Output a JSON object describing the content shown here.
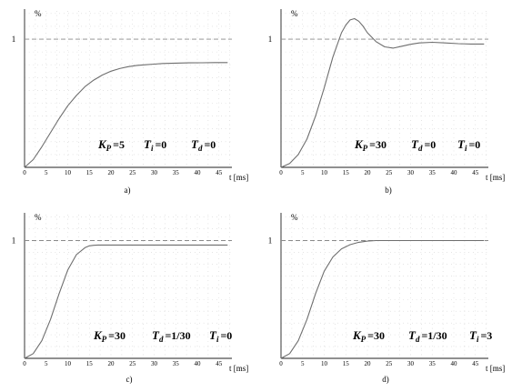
{
  "chart_data": [
    {
      "type": "line",
      "panel_label": "a)",
      "y_unit_label": "%",
      "x_axis_label": "t [ms]",
      "xlim": [
        0,
        48
      ],
      "xticks": [
        0,
        5,
        10,
        15,
        20,
        25,
        30,
        35,
        40,
        45
      ],
      "yticks": [
        1
      ],
      "reference_value": 1,
      "ylim": [
        0,
        1.22
      ],
      "grid": "dotted",
      "params": [
        {
          "sym": "K",
          "sub": "P",
          "val": "=5"
        },
        {
          "sym": "T",
          "sub": "i",
          "val": "=0"
        },
        {
          "sym": "T",
          "sub": "d",
          "val": "=0"
        }
      ],
      "series": [
        {
          "x": [
            0,
            2,
            4,
            6,
            8,
            10,
            12,
            14,
            16,
            18,
            20,
            22,
            24,
            26,
            28,
            30,
            32,
            35,
            38,
            41,
            44,
            47
          ],
          "y": [
            0,
            0.06,
            0.16,
            0.27,
            0.38,
            0.48,
            0.56,
            0.63,
            0.68,
            0.72,
            0.75,
            0.77,
            0.785,
            0.795,
            0.8,
            0.805,
            0.81,
            0.813,
            0.815,
            0.816,
            0.817,
            0.817
          ]
        }
      ]
    },
    {
      "type": "line",
      "panel_label": "b)",
      "y_unit_label": "%",
      "x_axis_label": "t [ms]",
      "xlim": [
        0,
        48
      ],
      "xticks": [
        0,
        5,
        10,
        15,
        20,
        25,
        30,
        35,
        40,
        45
      ],
      "yticks": [
        1
      ],
      "reference_value": 1,
      "ylim": [
        0,
        1.22
      ],
      "grid": "dotted",
      "params": [
        {
          "sym": "K",
          "sub": "P",
          "val": "=30"
        },
        {
          "sym": "T",
          "sub": "d",
          "val": "=0"
        },
        {
          "sym": "T",
          "sub": "i",
          "val": "=0"
        }
      ],
      "series": [
        {
          "x": [
            0,
            2,
            4,
            6,
            8,
            10,
            12,
            14,
            15,
            16,
            17,
            18,
            19,
            20,
            22,
            24,
            26,
            28,
            30,
            32,
            35,
            38,
            41,
            44,
            47
          ],
          "y": [
            0,
            0.03,
            0.1,
            0.22,
            0.4,
            0.62,
            0.86,
            1.05,
            1.11,
            1.15,
            1.16,
            1.14,
            1.1,
            1.05,
            0.98,
            0.94,
            0.93,
            0.945,
            0.96,
            0.97,
            0.975,
            0.97,
            0.965,
            0.962,
            0.962
          ]
        }
      ]
    },
    {
      "type": "line",
      "panel_label": "c)",
      "y_unit_label": "%",
      "x_axis_label": "t [ms]",
      "xlim": [
        0,
        48
      ],
      "xticks": [
        0,
        5,
        10,
        15,
        20,
        25,
        30,
        35,
        40,
        45
      ],
      "yticks": [
        1
      ],
      "reference_value": 1,
      "ylim": [
        0,
        1.22
      ],
      "grid": "dotted",
      "params": [
        {
          "sym": "K",
          "sub": "P",
          "val": "=30"
        },
        {
          "sym": "T",
          "sub": "d",
          "val": "=1/30"
        },
        {
          "sym": "T",
          "sub": "i",
          "val": "=0"
        }
      ],
      "series": [
        {
          "x": [
            0,
            2,
            4,
            6,
            8,
            10,
            12,
            14,
            15,
            16,
            17,
            18,
            20,
            22,
            25,
            30,
            35,
            40,
            47
          ],
          "y": [
            0,
            0.04,
            0.15,
            0.33,
            0.55,
            0.75,
            0.88,
            0.94,
            0.955,
            0.96,
            0.962,
            0.962,
            0.962,
            0.962,
            0.962,
            0.962,
            0.962,
            0.962,
            0.962
          ]
        }
      ]
    },
    {
      "type": "line",
      "panel_label": "d)",
      "y_unit_label": "%",
      "x_axis_label": "t [ms]",
      "xlim": [
        0,
        48
      ],
      "xticks": [
        0,
        5,
        10,
        15,
        20,
        25,
        30,
        35,
        40,
        45
      ],
      "yticks": [
        1
      ],
      "reference_value": 1,
      "ylim": [
        0,
        1.22
      ],
      "grid": "dotted",
      "params": [
        {
          "sym": "K",
          "sub": "P",
          "val": "=30"
        },
        {
          "sym": "T",
          "sub": "d",
          "val": "=1/30"
        },
        {
          "sym": "T",
          "sub": "i",
          "val": "=3"
        }
      ],
      "series": [
        {
          "x": [
            0,
            2,
            4,
            6,
            8,
            10,
            12,
            14,
            16,
            18,
            20,
            22,
            24,
            26,
            30,
            35,
            40,
            47
          ],
          "y": [
            0,
            0.04,
            0.15,
            0.33,
            0.55,
            0.74,
            0.86,
            0.93,
            0.965,
            0.985,
            0.995,
            1.0,
            1.0,
            1.0,
            1.0,
            1.0,
            1.0,
            1.0
          ]
        }
      ]
    }
  ]
}
